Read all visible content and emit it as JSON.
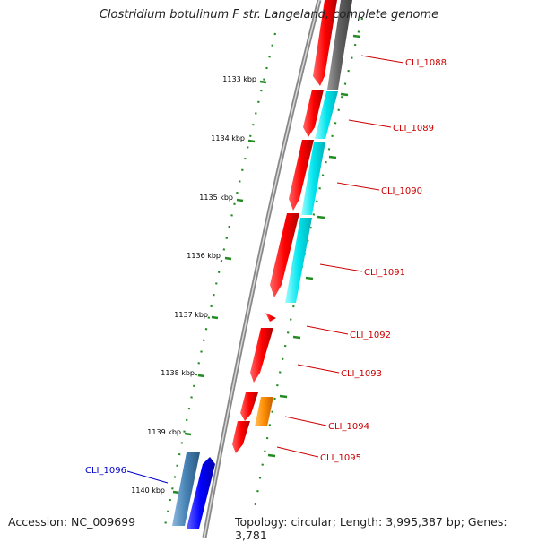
{
  "title": "Clostridium botulinum F str. Langeland, complete genome",
  "footer": {
    "accession": "Accession: NC_009699",
    "topology": "Topology: circular; Length: 3,995,387 bp; Genes: 3,781"
  },
  "scale_labels": [
    "1133 kbp",
    "1134 kbp",
    "1135 kbp",
    "1136 kbp",
    "1137 kbp",
    "1138 kbp",
    "1139 kbp",
    "1140 kbp"
  ],
  "genes": [
    {
      "id": "CLI_1088",
      "color": "#cc0000"
    },
    {
      "id": "CLI_1089",
      "color": "#cc0000"
    },
    {
      "id": "CLI_1090",
      "color": "#cc0000"
    },
    {
      "id": "CLI_1091",
      "color": "#cc0000"
    },
    {
      "id": "CLI_1092",
      "color": "#cc0000"
    },
    {
      "id": "CLI_1093",
      "color": "#cc0000"
    },
    {
      "id": "CLI_1094",
      "color": "#cc0000"
    },
    {
      "id": "CLI_1095",
      "color": "#cc0000"
    },
    {
      "id": "CLI_1096",
      "color": "#0000cc"
    }
  ],
  "colors": {
    "forward_cds": "#ff0000",
    "reverse_cds": "#0000ff",
    "gc_high": "#00e5ee",
    "gc_low": "#606060",
    "orange_feature": "#ff8c00",
    "steelblue_feature": "#4682b4",
    "tick": "#228b22",
    "backbone": "#888888"
  }
}
